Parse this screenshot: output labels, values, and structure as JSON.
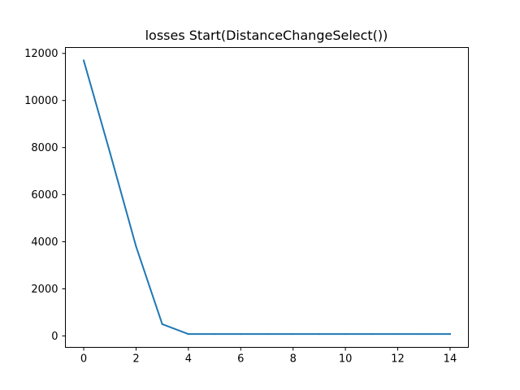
{
  "chart_data": {
    "type": "line",
    "title": "losses Start(DistanceChangeSelect())",
    "xlabel": "",
    "ylabel": "",
    "xlim": [
      -0.7,
      14.7
    ],
    "ylim": [
      -485,
      12250
    ],
    "x_ticks": [
      0,
      2,
      4,
      6,
      8,
      10,
      12,
      14
    ],
    "y_ticks": [
      0,
      2000,
      4000,
      6000,
      8000,
      10000,
      12000
    ],
    "grid": false,
    "series": [
      {
        "color": "#1f77b4",
        "x": [
          0,
          1,
          2,
          3,
          4,
          5,
          6,
          7,
          8,
          9,
          10,
          11,
          12,
          13,
          14
        ],
        "y": [
          11700,
          7800,
          3800,
          500,
          80,
          80,
          80,
          80,
          80,
          80,
          80,
          80,
          80,
          80,
          80
        ]
      }
    ]
  }
}
